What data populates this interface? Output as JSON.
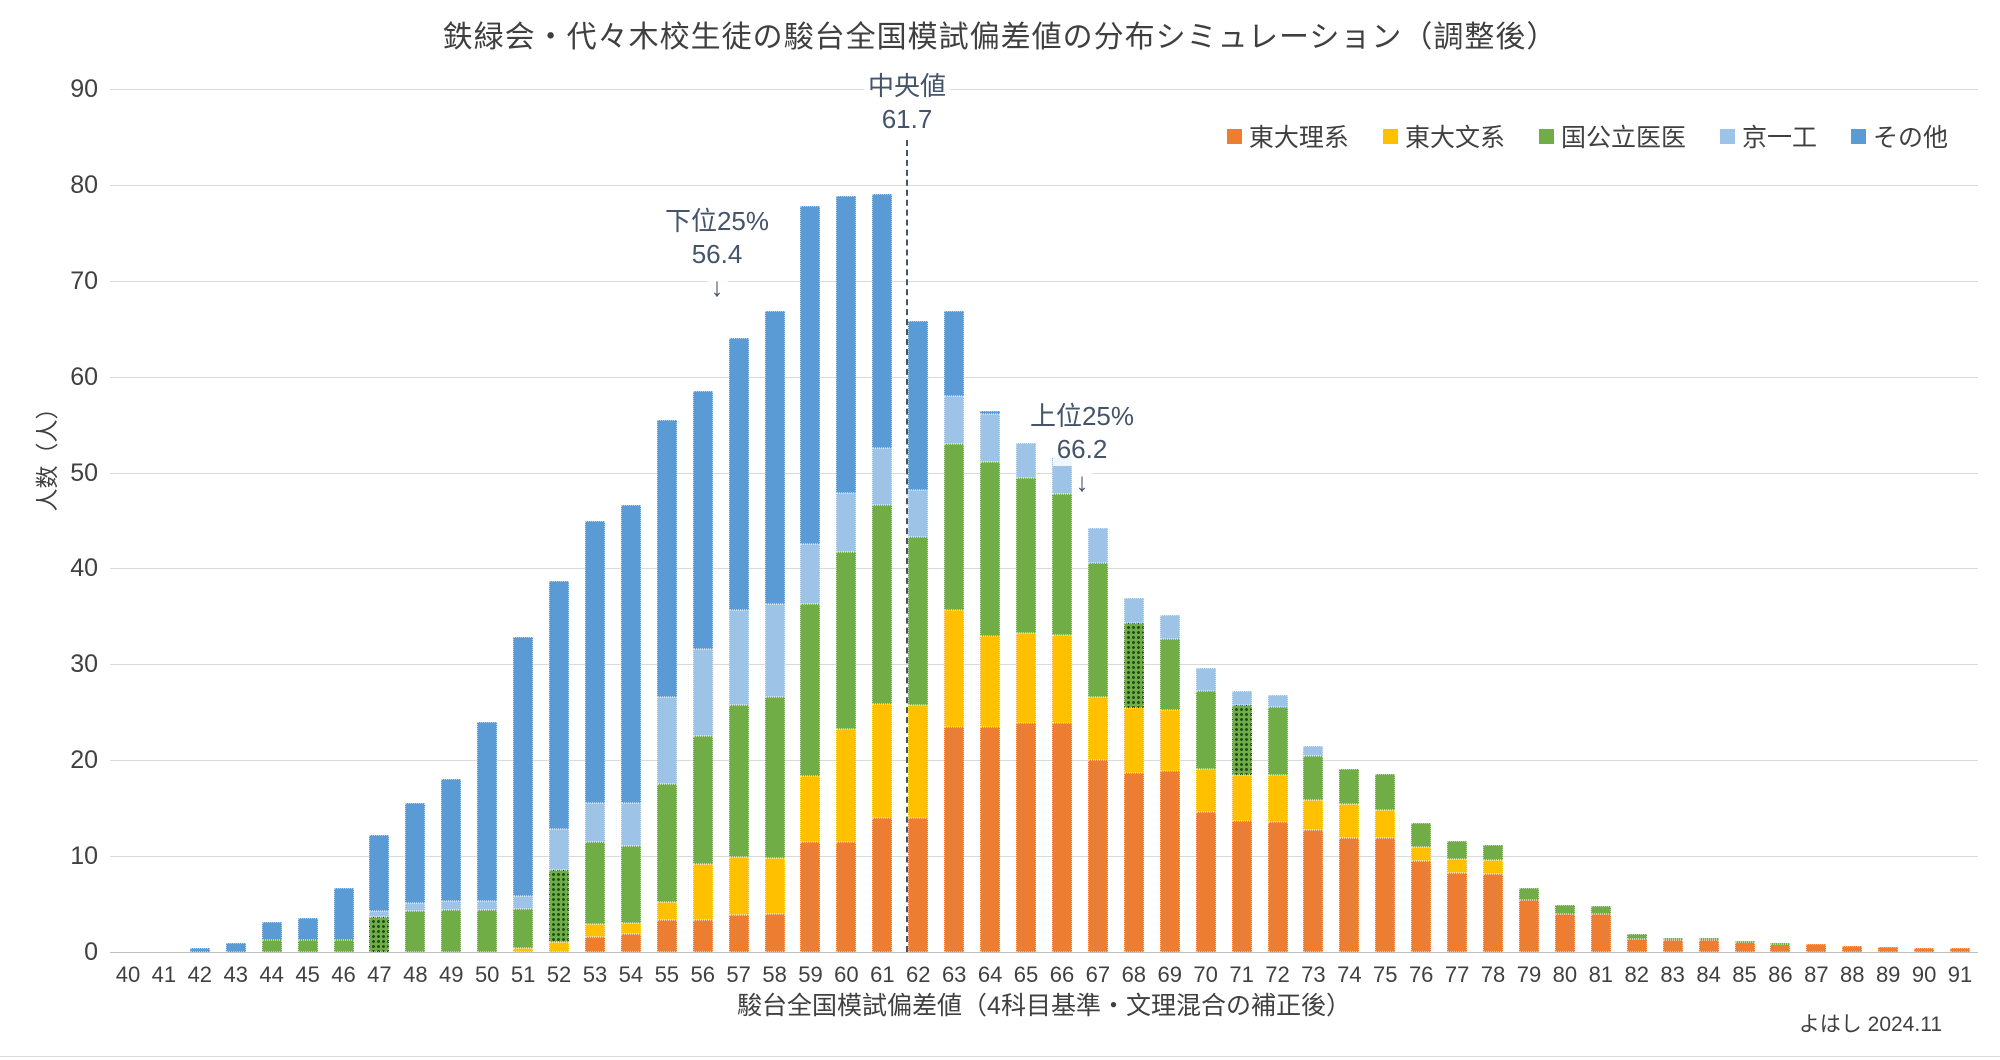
{
  "title": "鉄緑会・代々木校生徒の駿台全国模試偏差値の分布シミュレーション（調整後）",
  "credit": "よはし 2024.11",
  "chart_data": {
    "type": "bar",
    "stacked": true,
    "title": "鉄緑会・代々木校生徒の駿台全国模試偏差値の分布シミュレーション（調整後）",
    "xlabel": "駿台全国模試偏差値（4科目基準・文理混合の補正後）",
    "ylabel": "人数（人）",
    "ylim": [
      0,
      90
    ],
    "ytick_step": 10,
    "grid": true,
    "legend_position": "top-right",
    "categories": [
      40,
      41,
      42,
      43,
      44,
      45,
      46,
      47,
      48,
      49,
      50,
      51,
      52,
      53,
      54,
      55,
      56,
      57,
      58,
      59,
      60,
      61,
      62,
      63,
      64,
      65,
      66,
      67,
      68,
      69,
      70,
      71,
      72,
      73,
      74,
      75,
      76,
      77,
      78,
      79,
      80,
      81,
      82,
      83,
      84,
      85,
      86,
      87,
      88,
      89,
      90,
      91
    ],
    "series": [
      {
        "name": "東大理系",
        "color": "#ED7D31",
        "values": [
          0,
          0,
          0,
          0,
          0,
          0,
          0,
          0,
          0,
          0,
          0,
          0,
          0,
          1.6,
          1.9,
          3.3,
          3.3,
          3.9,
          4,
          11.5,
          11.5,
          14,
          14,
          23.5,
          23.5,
          23.9,
          23.9,
          20,
          18.7,
          18.9,
          14.6,
          13.7,
          13.6,
          12.7,
          11.9,
          11.9,
          9.5,
          8.2,
          8.1,
          5.4,
          4,
          4,
          1.4,
          1.2,
          1.2,
          1,
          0.8,
          0.8,
          0.65,
          0.5,
          0.4,
          0.4
        ]
      },
      {
        "name": "東大文系",
        "color": "#FFC000",
        "values": [
          0,
          0,
          0,
          0,
          0,
          0,
          0,
          0,
          0,
          0,
          0,
          0.4,
          1,
          1.3,
          1.1,
          1.9,
          5.9,
          6,
          5.8,
          6.9,
          11.8,
          11.9,
          11.8,
          12.2,
          9.5,
          9.4,
          9.2,
          6.6,
          6.7,
          6.3,
          4.5,
          4.8,
          4.9,
          3.1,
          3.5,
          2.9,
          1.5,
          1.5,
          1.5,
          0,
          0,
          0,
          0,
          0,
          0,
          0,
          0,
          0,
          0,
          0,
          0,
          0
        ]
      },
      {
        "name": "国公立医医",
        "color": "#70AD47",
        "patterned_categories": [
          47,
          52,
          68,
          71
        ],
        "values": [
          0,
          0,
          0,
          0,
          1.2,
          1.2,
          1.3,
          3.6,
          4.3,
          4.4,
          4.4,
          4.1,
          7.6,
          8.6,
          8.1,
          12.3,
          13.3,
          15.9,
          16.8,
          17.9,
          18.4,
          20.7,
          17.5,
          17.3,
          18.1,
          16.1,
          14.7,
          14,
          8.9,
          7.4,
          8.1,
          7.3,
          7.1,
          4.6,
          3.7,
          3.8,
          2.5,
          1.9,
          1.6,
          1.3,
          0.9,
          0.8,
          0.5,
          0.25,
          0.3,
          0.1,
          0.1,
          0,
          0,
          0,
          0,
          0
        ]
      },
      {
        "name": "京一工",
        "color": "#9DC3E6",
        "values": [
          0,
          0,
          0,
          0,
          0,
          0,
          0,
          0.7,
          0.8,
          0.9,
          0.9,
          1.3,
          4.2,
          4,
          4.4,
          9.1,
          9.1,
          9.9,
          9.7,
          6.3,
          6.2,
          6,
          4.9,
          5,
          5,
          3.7,
          3.8,
          3.6,
          2.6,
          2.5,
          2.4,
          1.4,
          1.2,
          1.1,
          0,
          0,
          0,
          0,
          0,
          0,
          0,
          0,
          0,
          0,
          0,
          0,
          0,
          0,
          0,
          0,
          0,
          0
        ]
      },
      {
        "name": "その他",
        "color": "#5B9BD5",
        "values": [
          0,
          0,
          0.4,
          0.9,
          1.9,
          2.3,
          5.4,
          7.9,
          10.4,
          12.7,
          18.7,
          27,
          25.9,
          29.5,
          31.1,
          28.9,
          26.9,
          28.3,
          30.6,
          35.2,
          30.9,
          26.5,
          17.6,
          8.8,
          0.3,
          0,
          0,
          0,
          0,
          0,
          0,
          0,
          0,
          0,
          0,
          0,
          0,
          0,
          0,
          0,
          0,
          0,
          0,
          0,
          0,
          0,
          0,
          0,
          0,
          0,
          0,
          0
        ]
      }
    ],
    "annotations": {
      "median": {
        "label": "中央値",
        "value_label": "61.7",
        "x": 61.7
      },
      "lower_quartile": {
        "label": "下位25%",
        "value_label": "56.4",
        "arrow": "↓",
        "x": 56.4
      },
      "upper_quartile": {
        "label": "上位25%",
        "value_label": "66.2",
        "arrow": "↓",
        "x": 66.2
      }
    }
  }
}
